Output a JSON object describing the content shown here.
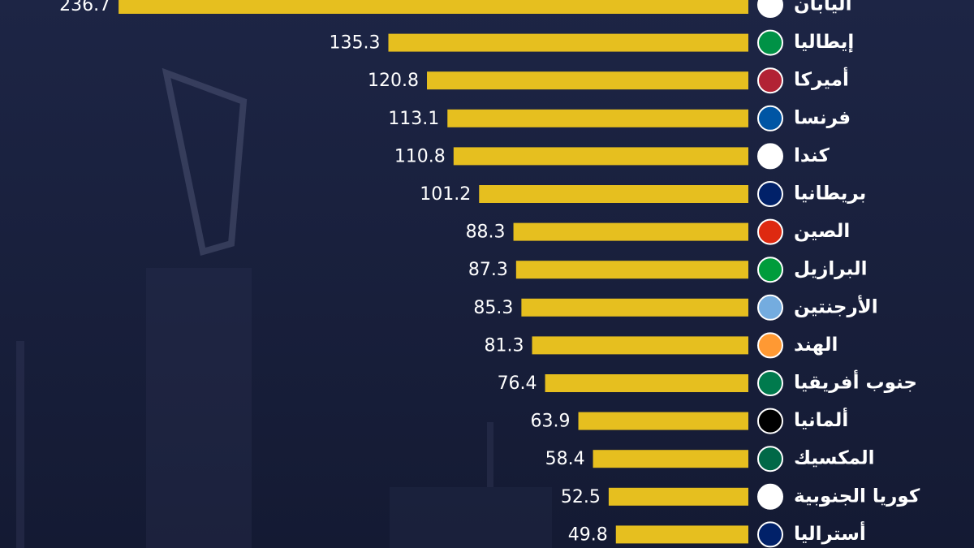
{
  "chart_data": {
    "type": "bar",
    "orientation": "horizontal",
    "color": "#e6bf1f",
    "categories": [
      "اليابان",
      "إيطاليا",
      "أميركا",
      "فرنسا",
      "كندا",
      "بريطانيا",
      "الصين",
      "البرازيل",
      "الأرجنتين",
      "الهند",
      "جنوب أفريقيا",
      "ألمانيا",
      "المكسيك",
      "كوريا الجنوبية",
      "أستراليا"
    ],
    "values": [
      236.7,
      135.3,
      120.8,
      113.1,
      110.8,
      101.2,
      88.3,
      87.3,
      85.3,
      81.3,
      76.4,
      63.9,
      58.4,
      52.5,
      49.8
    ]
  }
}
